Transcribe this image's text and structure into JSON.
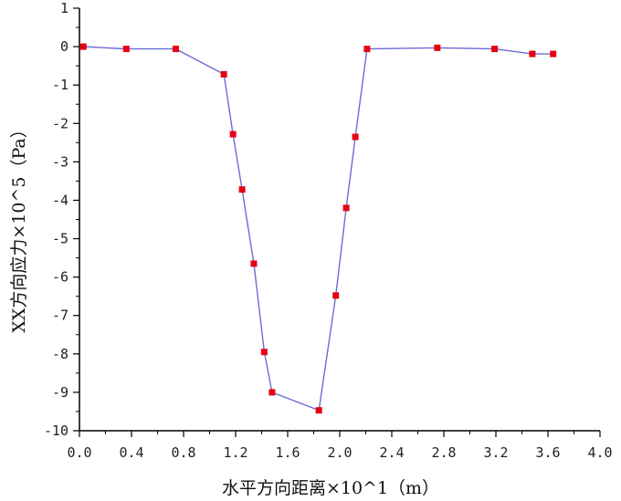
{
  "chart_data": {
    "type": "line",
    "title": "",
    "xlabel": "水平方向距离×10^1（m）",
    "ylabel": "XX方向应力×10^5（Pa）",
    "xlim": [
      0.0,
      4.0
    ],
    "ylim": [
      -10,
      1
    ],
    "xticks": [
      "0.0",
      "0.4",
      "0.8",
      "1.2",
      "1.6",
      "2.0",
      "2.4",
      "2.8",
      "3.2",
      "3.6",
      "4.0"
    ],
    "yticks": [
      "1",
      "0",
      "-1",
      "-2",
      "-3",
      "-4",
      "-5",
      "-6",
      "-7",
      "-8",
      "-9",
      "-10"
    ],
    "grid": false,
    "legend": "none",
    "series": [
      {
        "x": [
          0.03,
          0.36,
          0.74,
          1.11,
          1.18,
          1.25,
          1.34,
          1.42,
          1.48,
          1.84,
          1.97,
          2.05,
          2.12,
          2.21,
          2.75,
          3.19,
          3.48,
          3.64
        ],
        "y": [
          0.0,
          -0.06,
          -0.06,
          -0.72,
          -2.28,
          -3.72,
          -5.65,
          -7.95,
          -9.0,
          -9.47,
          -6.48,
          -4.2,
          -2.35,
          -0.06,
          -0.03,
          -0.06,
          -0.19,
          -0.19
        ],
        "line_color": "#6b6bd6",
        "marker_color": "#e60012",
        "marker": "square"
      }
    ]
  }
}
